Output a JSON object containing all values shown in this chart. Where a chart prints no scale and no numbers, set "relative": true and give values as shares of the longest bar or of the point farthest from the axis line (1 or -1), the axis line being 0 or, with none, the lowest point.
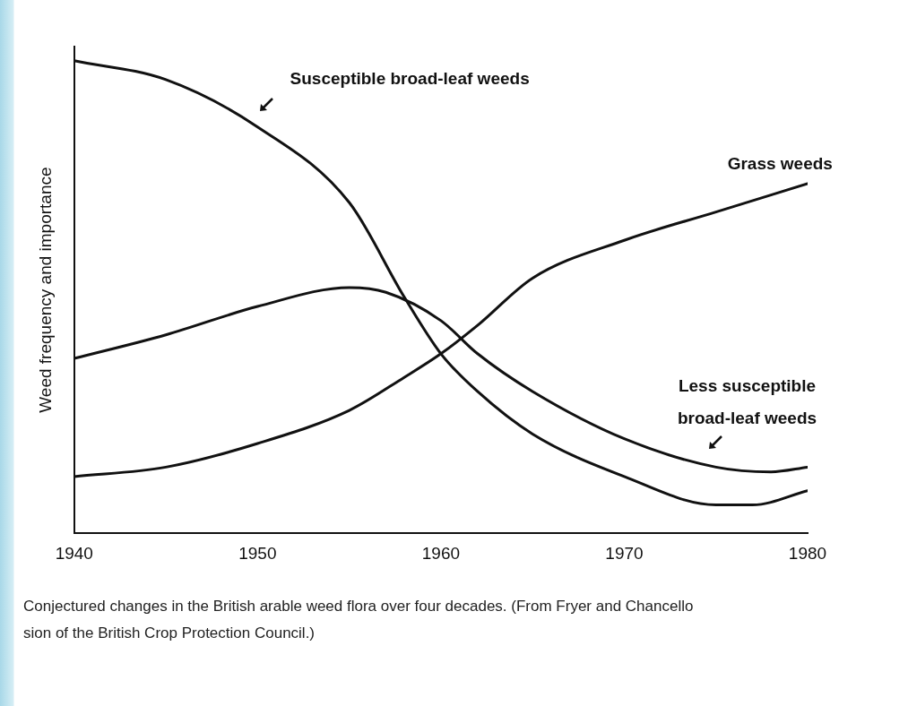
{
  "chart_data": {
    "type": "line",
    "relative": true,
    "xlabel": null,
    "ylabel": "Weed frequency and importance",
    "xlim": [
      1940,
      1980
    ],
    "xticks": [
      1940,
      1950,
      1960,
      1970,
      1980
    ],
    "grid": false,
    "legend": false,
    "marker": "none",
    "line_style": "solid",
    "annotations": [
      "Conjectured changes in the British arable weed flora over four decades. (From Fryer and Chancello",
      "sion of the British Crop Protection Council.)"
    ],
    "series": [
      {
        "name": "Susceptible broad-leaf weeds",
        "color": "#111111",
        "x": [
          1940,
          1945,
          1950,
          1955,
          1958,
          1960,
          1962,
          1965,
          1970,
          1975,
          1977,
          1980
        ],
        "values": [
          1,
          0.96,
          0.86,
          0.7,
          0.5,
          0.38,
          0.3,
          0.21,
          0.12,
          0.06,
          0.06,
          0.09
        ]
      },
      {
        "name": "Less susceptible broad-leaf weeds",
        "color": "#111111",
        "x": [
          1940,
          1945,
          1950,
          1955,
          1957,
          1960,
          1962,
          1965,
          1970,
          1975,
          1978,
          1980
        ],
        "values": [
          0.37,
          0.42,
          0.48,
          0.52,
          0.51,
          0.45,
          0.38,
          0.3,
          0.2,
          0.14,
          0.13,
          0.14
        ]
      },
      {
        "name": "Grass weeds",
        "color": "#111111",
        "x": [
          1940,
          1945,
          1950,
          1955,
          1958,
          1960,
          1962,
          1965,
          1970,
          1975,
          1980
        ],
        "values": [
          0.12,
          0.14,
          0.19,
          0.26,
          0.33,
          0.38,
          0.44,
          0.54,
          0.62,
          0.68,
          0.74
        ]
      }
    ]
  }
}
